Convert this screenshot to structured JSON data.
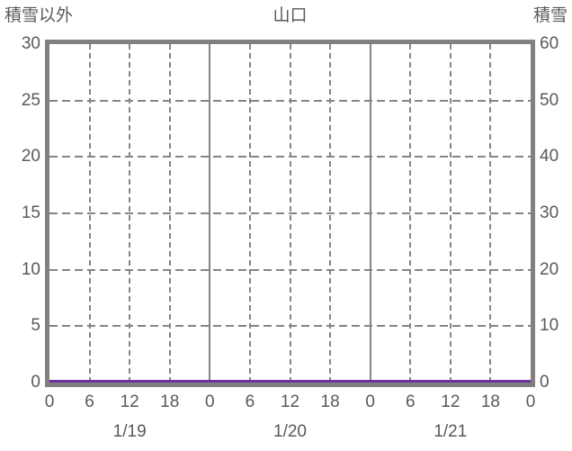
{
  "header": {
    "left_axis_title": "積雪以外",
    "title": "山口",
    "right_axis_title": "積雪"
  },
  "colors": {
    "frame": "#808080",
    "grid": "#858585",
    "text": "#595959",
    "series_other_than_snow": "#7030A0"
  },
  "chart_data": {
    "type": "line",
    "title": "山口",
    "left_axis": {
      "title": "積雪以外",
      "min": 0,
      "max": 30,
      "tick_step": 5,
      "ticks": [
        "0",
        "5",
        "10",
        "15",
        "20",
        "25",
        "30"
      ]
    },
    "right_axis": {
      "title": "積雪",
      "min": 0,
      "max": 60,
      "tick_step": 10,
      "ticks": [
        "0",
        "10",
        "20",
        "30",
        "40",
        "50",
        "60"
      ]
    },
    "x_axis": {
      "hours_total": 72,
      "tick_interval_hours": 6,
      "tick_hours": [
        0,
        6,
        12,
        18,
        24,
        30,
        36,
        42,
        48,
        54,
        60,
        66,
        72
      ],
      "tick_labels": [
        "0",
        "6",
        "12",
        "18",
        "0",
        "6",
        "12",
        "18",
        "0",
        "6",
        "12",
        "18",
        "0"
      ],
      "day_boundary_hours": [
        24,
        48
      ],
      "day_labels": [
        "1/19",
        "1/20",
        "1/21"
      ],
      "day_label_center_hours": [
        12,
        36,
        60
      ]
    },
    "grid": {
      "horizontal": "dashed",
      "vertical_6h": "dashed",
      "vertical_day": "solid"
    },
    "series": [
      {
        "name": "積雪以外",
        "axis": "left",
        "color": "#7030A0",
        "x_hours": [
          0,
          6,
          12,
          18,
          24,
          30,
          36,
          42,
          48,
          54,
          60,
          66,
          72
        ],
        "values": [
          0,
          0,
          0,
          0,
          0,
          0,
          0,
          0,
          0,
          0,
          0,
          0,
          0
        ]
      },
      {
        "name": "積雪",
        "axis": "right",
        "x_hours": [
          0,
          6,
          12,
          18,
          24,
          30,
          36,
          42,
          48,
          54,
          60,
          66,
          72
        ],
        "values": [
          0,
          0,
          0,
          0,
          0,
          0,
          0,
          0,
          0,
          0,
          0,
          0,
          0
        ]
      }
    ]
  }
}
